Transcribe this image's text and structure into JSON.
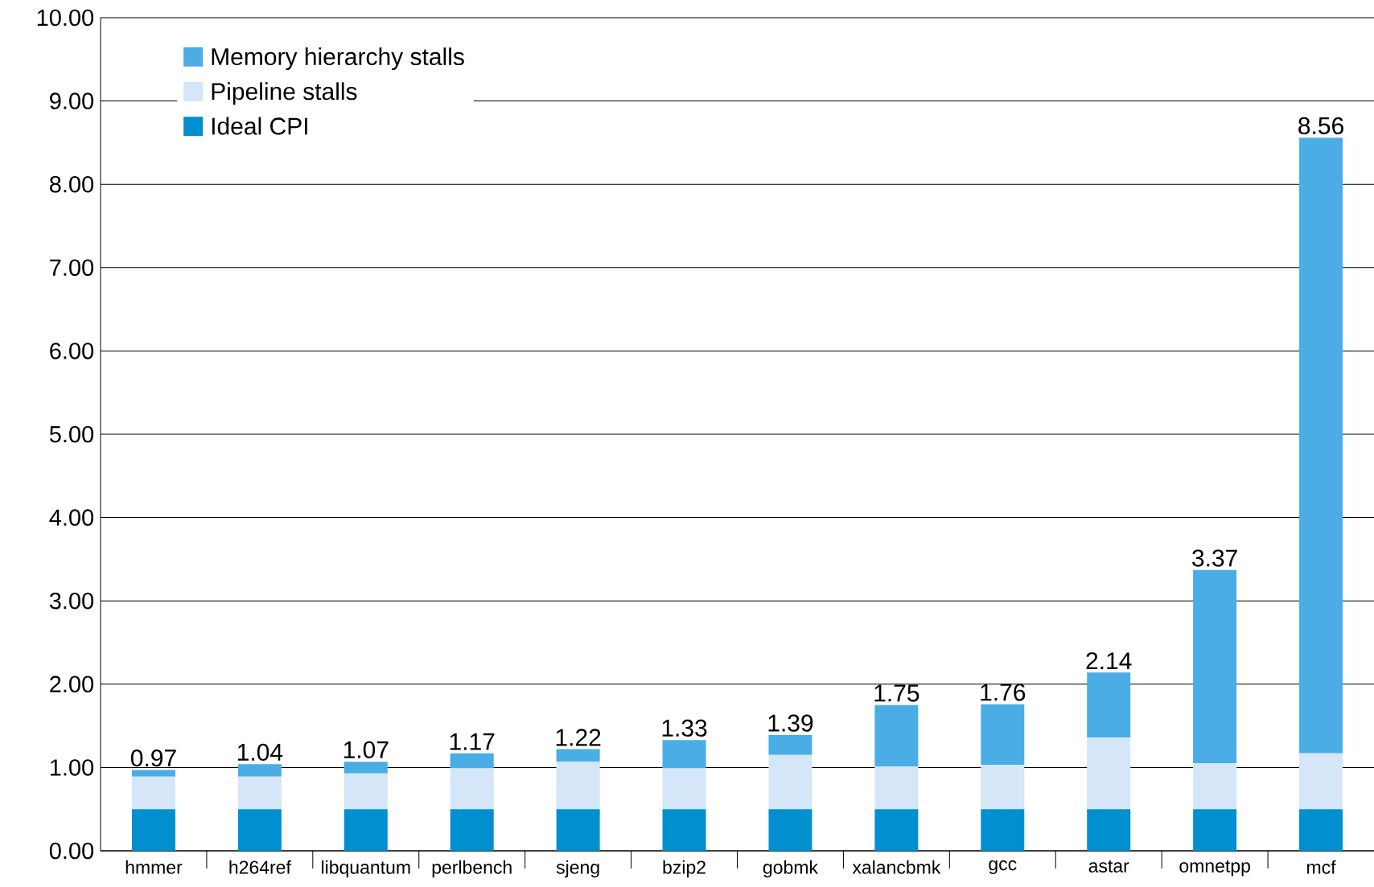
{
  "chart_data": {
    "type": "bar",
    "stacked": true,
    "categories": [
      "hmmer",
      "h264ref",
      "libquantum",
      "perlbench",
      "sjeng",
      "bzip2",
      "gobmk",
      "xalancbmk",
      "gcc",
      "astar",
      "omnetpp",
      "mcf"
    ],
    "series": [
      {
        "name": "Ideal CPI",
        "color": "#008fcf",
        "values": [
          0.5,
          0.5,
          0.5,
          0.5,
          0.5,
          0.5,
          0.5,
          0.5,
          0.5,
          0.5,
          0.5,
          0.5
        ]
      },
      {
        "name": "Pipeline stalls",
        "color": "#d4e6f7",
        "values": [
          0.39,
          0.39,
          0.43,
          0.49,
          0.57,
          0.49,
          0.65,
          0.51,
          0.53,
          0.86,
          0.55,
          0.67
        ]
      },
      {
        "name": "Memory hierarchy stalls",
        "color": "#4aade6",
        "values": [
          0.08,
          0.15,
          0.14,
          0.18,
          0.15,
          0.34,
          0.24,
          0.74,
          0.73,
          0.78,
          2.32,
          7.39
        ]
      }
    ],
    "totals": [
      "0.97",
      "1.04",
      "1.07",
      "1.17",
      "1.22",
      "1.33",
      "1.39",
      "1.75",
      "1.76",
      "2.14",
      "3.37",
      "8.56"
    ],
    "ylim": [
      0,
      10
    ],
    "yticks": [
      {
        "value": 0,
        "label": "0.00"
      },
      {
        "value": 1,
        "label": "1.00"
      },
      {
        "value": 2,
        "label": "2.00"
      },
      {
        "value": 3,
        "label": "3.00"
      },
      {
        "value": 4,
        "label": "4.00"
      },
      {
        "value": 5,
        "label": "5.00"
      },
      {
        "value": 6,
        "label": "6.00"
      },
      {
        "value": 7,
        "label": "7.00"
      },
      {
        "value": 8,
        "label": "8.00"
      },
      {
        "value": 9,
        "label": "9.00"
      },
      {
        "value": 10,
        "label": "10.00"
      }
    ],
    "grid": "y",
    "legend": "top left"
  }
}
